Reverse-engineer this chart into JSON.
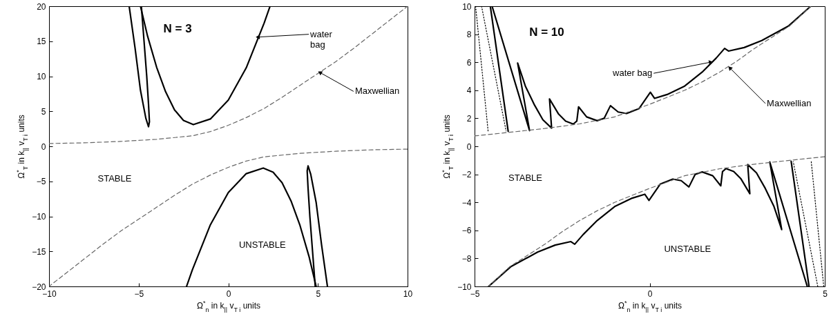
{
  "chart_data": [
    {
      "type": "line",
      "xlabel": "Ω$^{*}$$_{n}$ in k$_{||}$ v$_{T i}$ units",
      "ylabel": "Ω$^{*}$$_{T}$ in k$_{||}$ v$_{T i}$ units",
      "xlim": [
        -10,
        10
      ],
      "ylim": [
        -20,
        20
      ],
      "xticks": [
        -10,
        -5,
        0,
        5,
        10
      ],
      "yticks": [
        -20,
        -15,
        -10,
        -5,
        0,
        5,
        10,
        15,
        20
      ],
      "series": [
        {
          "color": "#000000",
          "line_style": "solid",
          "x": [
            -4.9,
            -4.5,
            -4,
            -3.5,
            -3,
            -2.5,
            -1.95,
            -1,
            0,
            1,
            2,
            2.33
          ],
          "values": [
            20,
            15.7,
            11.3,
            7.8,
            5.2,
            3.7,
            3.1,
            3.9,
            6.6,
            11.2,
            17.6,
            20
          ]
        },
        {
          "color": "#000000",
          "line_style": "solid",
          "x": [
            -5.53,
            -5.2,
            -4.9,
            -4.6,
            -4.45,
            -4.4,
            -4.45,
            -4.55,
            -4.7,
            -4.85
          ],
          "values": [
            20,
            14,
            8,
            4,
            2.8,
            3.5,
            6,
            10,
            15,
            20
          ]
        },
        {
          "color": "#000000",
          "line_style": "solid",
          "x": [
            -2.33,
            -2,
            -1,
            0,
            1,
            1.95,
            2.5,
            3,
            3.5,
            4,
            4.5,
            4.9
          ],
          "values": [
            -20,
            -17.6,
            -11.2,
            -6.6,
            -3.9,
            -3.1,
            -3.7,
            -5.2,
            -7.8,
            -11.3,
            -15.7,
            -20
          ]
        },
        {
          "color": "#000000",
          "line_style": "solid",
          "x": [
            5.53,
            5.2,
            4.9,
            4.6,
            4.45,
            4.4,
            4.45,
            4.55,
            4.7,
            4.85
          ],
          "values": [
            -20,
            -14,
            -8,
            -4,
            -2.8,
            -3.5,
            -6,
            -10,
            -15,
            -20
          ]
        },
        {
          "color": "#666666",
          "line_style": "dashed",
          "x": [
            -10,
            -8,
            -6,
            -4,
            -2,
            -1,
            0,
            1,
            2,
            3,
            4,
            5,
            6,
            7,
            8,
            9,
            10
          ],
          "values": [
            0.4,
            0.5,
            0.7,
            1.0,
            1.5,
            2.1,
            3.0,
            4.1,
            5.4,
            7.0,
            8.7,
            10.4,
            12.1,
            14.0,
            16.0,
            18.0,
            20
          ]
        },
        {
          "color": "#666666",
          "line_style": "dashed",
          "x": [
            10,
            8,
            6,
            4,
            2,
            1,
            0,
            -1,
            -2,
            -3,
            -4,
            -5,
            -6,
            -7,
            -8,
            -9,
            -10
          ],
          "values": [
            -0.4,
            -0.5,
            -0.7,
            -1.0,
            -1.5,
            -2.1,
            -3.0,
            -4.1,
            -5.4,
            -7.0,
            -8.7,
            -10.4,
            -12.1,
            -14.0,
            -16.0,
            -18.0,
            -20
          ]
        }
      ],
      "annotations": [
        "N = 3",
        {
          "text": "water\nbag",
          "x": 1.68,
          "y": 15.6
        },
        {
          "text": "Maxwellian",
          "x": 5.14,
          "y": 10.5
        },
        "STABLE",
        "UNSTABLE"
      ]
    },
    {
      "type": "line",
      "xlabel": "Ω$^{*}$$_{n}$ in k$_{||}$ v$_{T i}$ units",
      "ylabel": "Ω$^{*}$$_{T}$ in k$_{||}$ v$_{T i}$ units",
      "xlim": [
        -5,
        5
      ],
      "ylim": [
        -10,
        10
      ],
      "xticks": [
        -5,
        0,
        5
      ],
      "yticks": [
        -10,
        -8,
        -6,
        -4,
        -2,
        0,
        2,
        4,
        6,
        8,
        10
      ],
      "series": [
        {
          "color": "#000000",
          "line_style": "dotted",
          "x": [
            -4.97,
            -4.61
          ],
          "values": [
            10,
            1.0
          ]
        },
        {
          "color": "#000000",
          "line_style": "dotted",
          "x": [
            -4.8,
            -4.1
          ],
          "values": [
            10,
            1.1
          ]
        },
        {
          "color": "#000000",
          "line_style": "solid",
          "x": [
            -4.55,
            -4.04
          ],
          "values": [
            10,
            1.07
          ]
        },
        {
          "color": "#000000",
          "line_style": "solid",
          "x": [
            -4.5,
            -3.43,
            -3.77,
            -3.55,
            -3.3,
            -3.05,
            -2.8,
            -2.86,
            -2.6,
            -2.4,
            -2.18,
            -2.08,
            -2.03,
            -1.8,
            -1.5,
            -1.3,
            -1.12,
            -0.9,
            -0.66,
            -0.3,
            0.02,
            0.14,
            0.5,
            1,
            1.5,
            1.9,
            2.14,
            2.25,
            2.7,
            3.2,
            3.97,
            4.6
          ],
          "values": [
            10,
            1.12,
            5.94,
            4.3,
            3.0,
            1.9,
            1.3,
            3.38,
            2.3,
            1.8,
            1.59,
            1.8,
            2.82,
            2.1,
            1.83,
            2.0,
            2.9,
            2.45,
            2.34,
            2.7,
            3.86,
            3.42,
            3.7,
            4.3,
            5.3,
            6.3,
            6.99,
            6.8,
            7.05,
            7.55,
            8.6,
            10
          ]
        },
        {
          "color": "#000000",
          "line_style": "dotted",
          "x": [
            4.97,
            4.61
          ],
          "values": [
            -10,
            -1.0
          ]
        },
        {
          "color": "#000000",
          "line_style": "dotted",
          "x": [
            4.8,
            4.1
          ],
          "values": [
            -10,
            -1.1
          ]
        },
        {
          "color": "#000000",
          "line_style": "solid",
          "x": [
            4.55,
            4.04
          ],
          "values": [
            -10,
            -1.07
          ]
        },
        {
          "color": "#000000",
          "line_style": "solid",
          "x": [
            4.5,
            3.43,
            3.77,
            3.55,
            3.3,
            3.05,
            2.8,
            2.86,
            2.6,
            2.4,
            2.18,
            2.08,
            2.03,
            1.8,
            1.5,
            1.3,
            1.12,
            0.9,
            0.66,
            0.3,
            -0.02,
            -0.14,
            -0.5,
            -1,
            -1.5,
            -1.9,
            -2.14,
            -2.25,
            -2.7,
            -3.2,
            -3.97,
            -4.6
          ],
          "values": [
            -10,
            -1.12,
            -5.94,
            -4.3,
            -3.0,
            -1.9,
            -1.3,
            -3.38,
            -2.3,
            -1.8,
            -1.59,
            -1.8,
            -2.82,
            -2.1,
            -1.83,
            -2.0,
            -2.9,
            -2.45,
            -2.34,
            -2.7,
            -3.86,
            -3.42,
            -3.7,
            -4.3,
            -5.3,
            -6.3,
            -6.99,
            -6.8,
            -7.05,
            -7.55,
            -8.6,
            -10
          ]
        },
        {
          "color": "#666666",
          "line_style": "dashed",
          "x": [
            -5,
            -4,
            -3,
            -2,
            -1,
            0,
            0.5,
            1,
            1.5,
            2,
            2.5,
            3,
            3.5,
            4,
            4.6
          ],
          "values": [
            0.74,
            1.0,
            1.27,
            1.6,
            2.1,
            3.0,
            3.5,
            4.0,
            4.6,
            5.3,
            6.1,
            7.0,
            7.8,
            8.6,
            10
          ]
        },
        {
          "color": "#666666",
          "line_style": "dashed",
          "x": [
            5,
            4,
            3,
            2,
            1,
            0,
            -0.5,
            -1,
            -1.5,
            -2,
            -2.5,
            -3,
            -3.5,
            -4,
            -4.6
          ],
          "values": [
            -0.74,
            -1.0,
            -1.27,
            -1.6,
            -2.1,
            -3.0,
            -3.5,
            -4.0,
            -4.6,
            -5.3,
            -6.1,
            -7.0,
            -7.8,
            -8.6,
            -10
          ]
        }
      ],
      "annotations": [
        "N = 10",
        {
          "text": "water bag",
          "x": 1.73,
          "y": 6.0
        },
        {
          "text": "Maxwellian",
          "x": 2.3,
          "y": 5.57
        },
        "STABLE",
        "UNSTABLE"
      ]
    }
  ]
}
